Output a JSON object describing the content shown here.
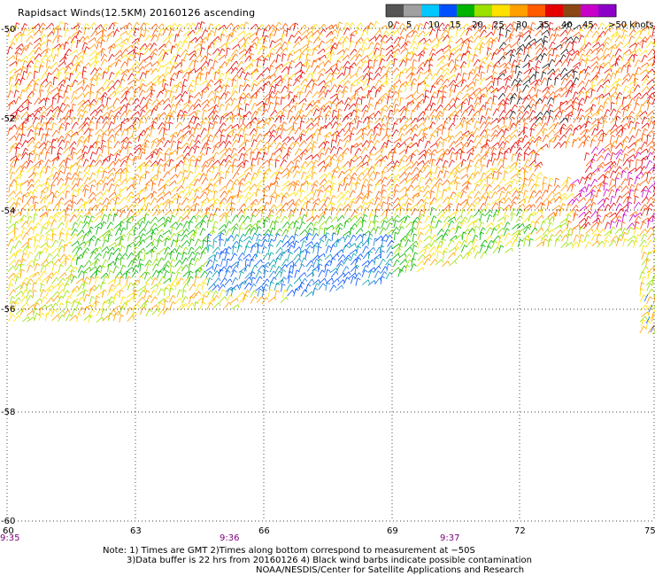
{
  "title": "Rapidsact Winds(12.5KM) 20160126 ascending",
  "color_scale": {
    "labels": [
      "0",
      "5",
      "10",
      "15",
      "20",
      "25",
      "30",
      "35",
      "40",
      "45",
      ">50 knots"
    ],
    "colors": [
      "#555555",
      "#a0a0a0",
      "#00c8ff",
      "#0050ff",
      "#00b400",
      "#9be100",
      "#ffe100",
      "#ffa000",
      "#ff5a00",
      "#e60000",
      "#8c4614",
      "#c800c8",
      "#8c00c8"
    ]
  },
  "axes": {
    "longitude_ticks": [
      "60",
      "63",
      "66",
      "69",
      "72",
      "75"
    ],
    "latitude_ticks": [
      "-50",
      "-52",
      "-54",
      "-56",
      "-58",
      "-60"
    ]
  },
  "time_labels": [
    "9:35",
    "9:36",
    "9:37"
  ],
  "notes": [
    "Note: 1) Times are GMT 2)Times along bottom correspond to measurement at −50S",
    "3)Data buffer is 22 hrs from 20160126 4) Black wind barbs indicate possible contamination",
    "NOAA/NESDIS/Center for Satellite Applications and Research"
  ]
}
